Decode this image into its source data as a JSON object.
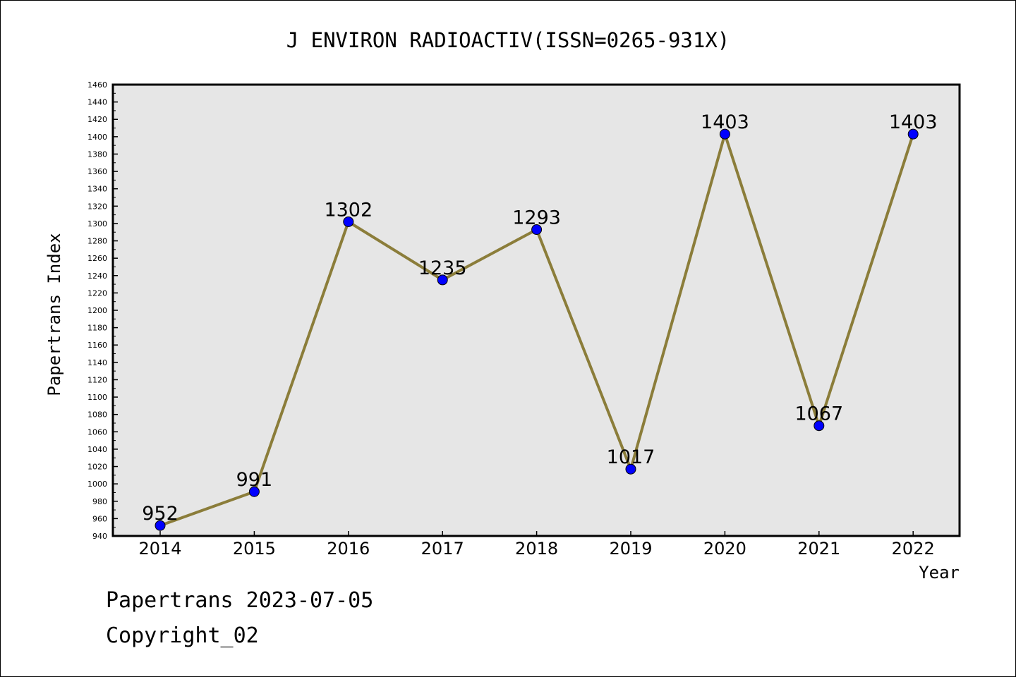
{
  "chart_data": {
    "type": "line",
    "title": "J ENVIRON RADIOACTIV(ISSN=0265-931X)",
    "xlabel": "Year",
    "ylabel": "Papertrans Index",
    "categories": [
      "2014",
      "2015",
      "2016",
      "2017",
      "2018",
      "2019",
      "2020",
      "2021",
      "2022"
    ],
    "series": [
      {
        "values": [
          952,
          991,
          1302,
          1235,
          1293,
          1017,
          1403,
          1067,
          1403
        ],
        "line_color": "#8b7d3a",
        "marker_color": "#0000ff"
      }
    ],
    "data_labels": [
      "952",
      "991",
      "1302",
      "1235",
      "1293",
      "1017",
      "1403",
      "1067",
      "1403"
    ],
    "ylim": [
      940,
      1460
    ],
    "ytick_step": 20,
    "plot_background": "#e6e6e6",
    "grid": false,
    "legend": "none"
  },
  "footer": {
    "line1": "Papertrans 2023-07-05",
    "line2": "Copyright_02"
  }
}
